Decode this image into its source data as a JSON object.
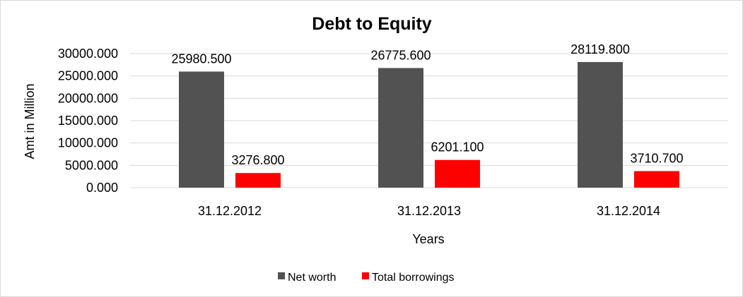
{
  "chart_data": {
    "type": "bar",
    "title": "Debt to Equity",
    "xlabel": "Years",
    "ylabel": "Amt in Million",
    "categories": [
      "31.12.2012",
      "31.12.2013",
      "31.12.2014"
    ],
    "series": [
      {
        "name": "Net worth",
        "color": "#525252",
        "values": [
          25980.5,
          26775.6,
          28119.8
        ],
        "labels": [
          "25980.500",
          "26775.600",
          "28119.800"
        ]
      },
      {
        "name": "Total borrowings",
        "color": "#ff0000",
        "values": [
          3276.8,
          6201.1,
          3710.7
        ],
        "labels": [
          "3276.800",
          "6201.100",
          "3710.700"
        ]
      }
    ],
    "ylim": [
      0,
      30000
    ],
    "yticks": [
      "0.000",
      "5000.000",
      "10000.000",
      "15000.000",
      "20000.000",
      "25000.000",
      "30000.000"
    ],
    "ytick_values": [
      0,
      5000,
      10000,
      15000,
      20000,
      25000,
      30000
    ],
    "grid": true,
    "legend": "bottom"
  }
}
